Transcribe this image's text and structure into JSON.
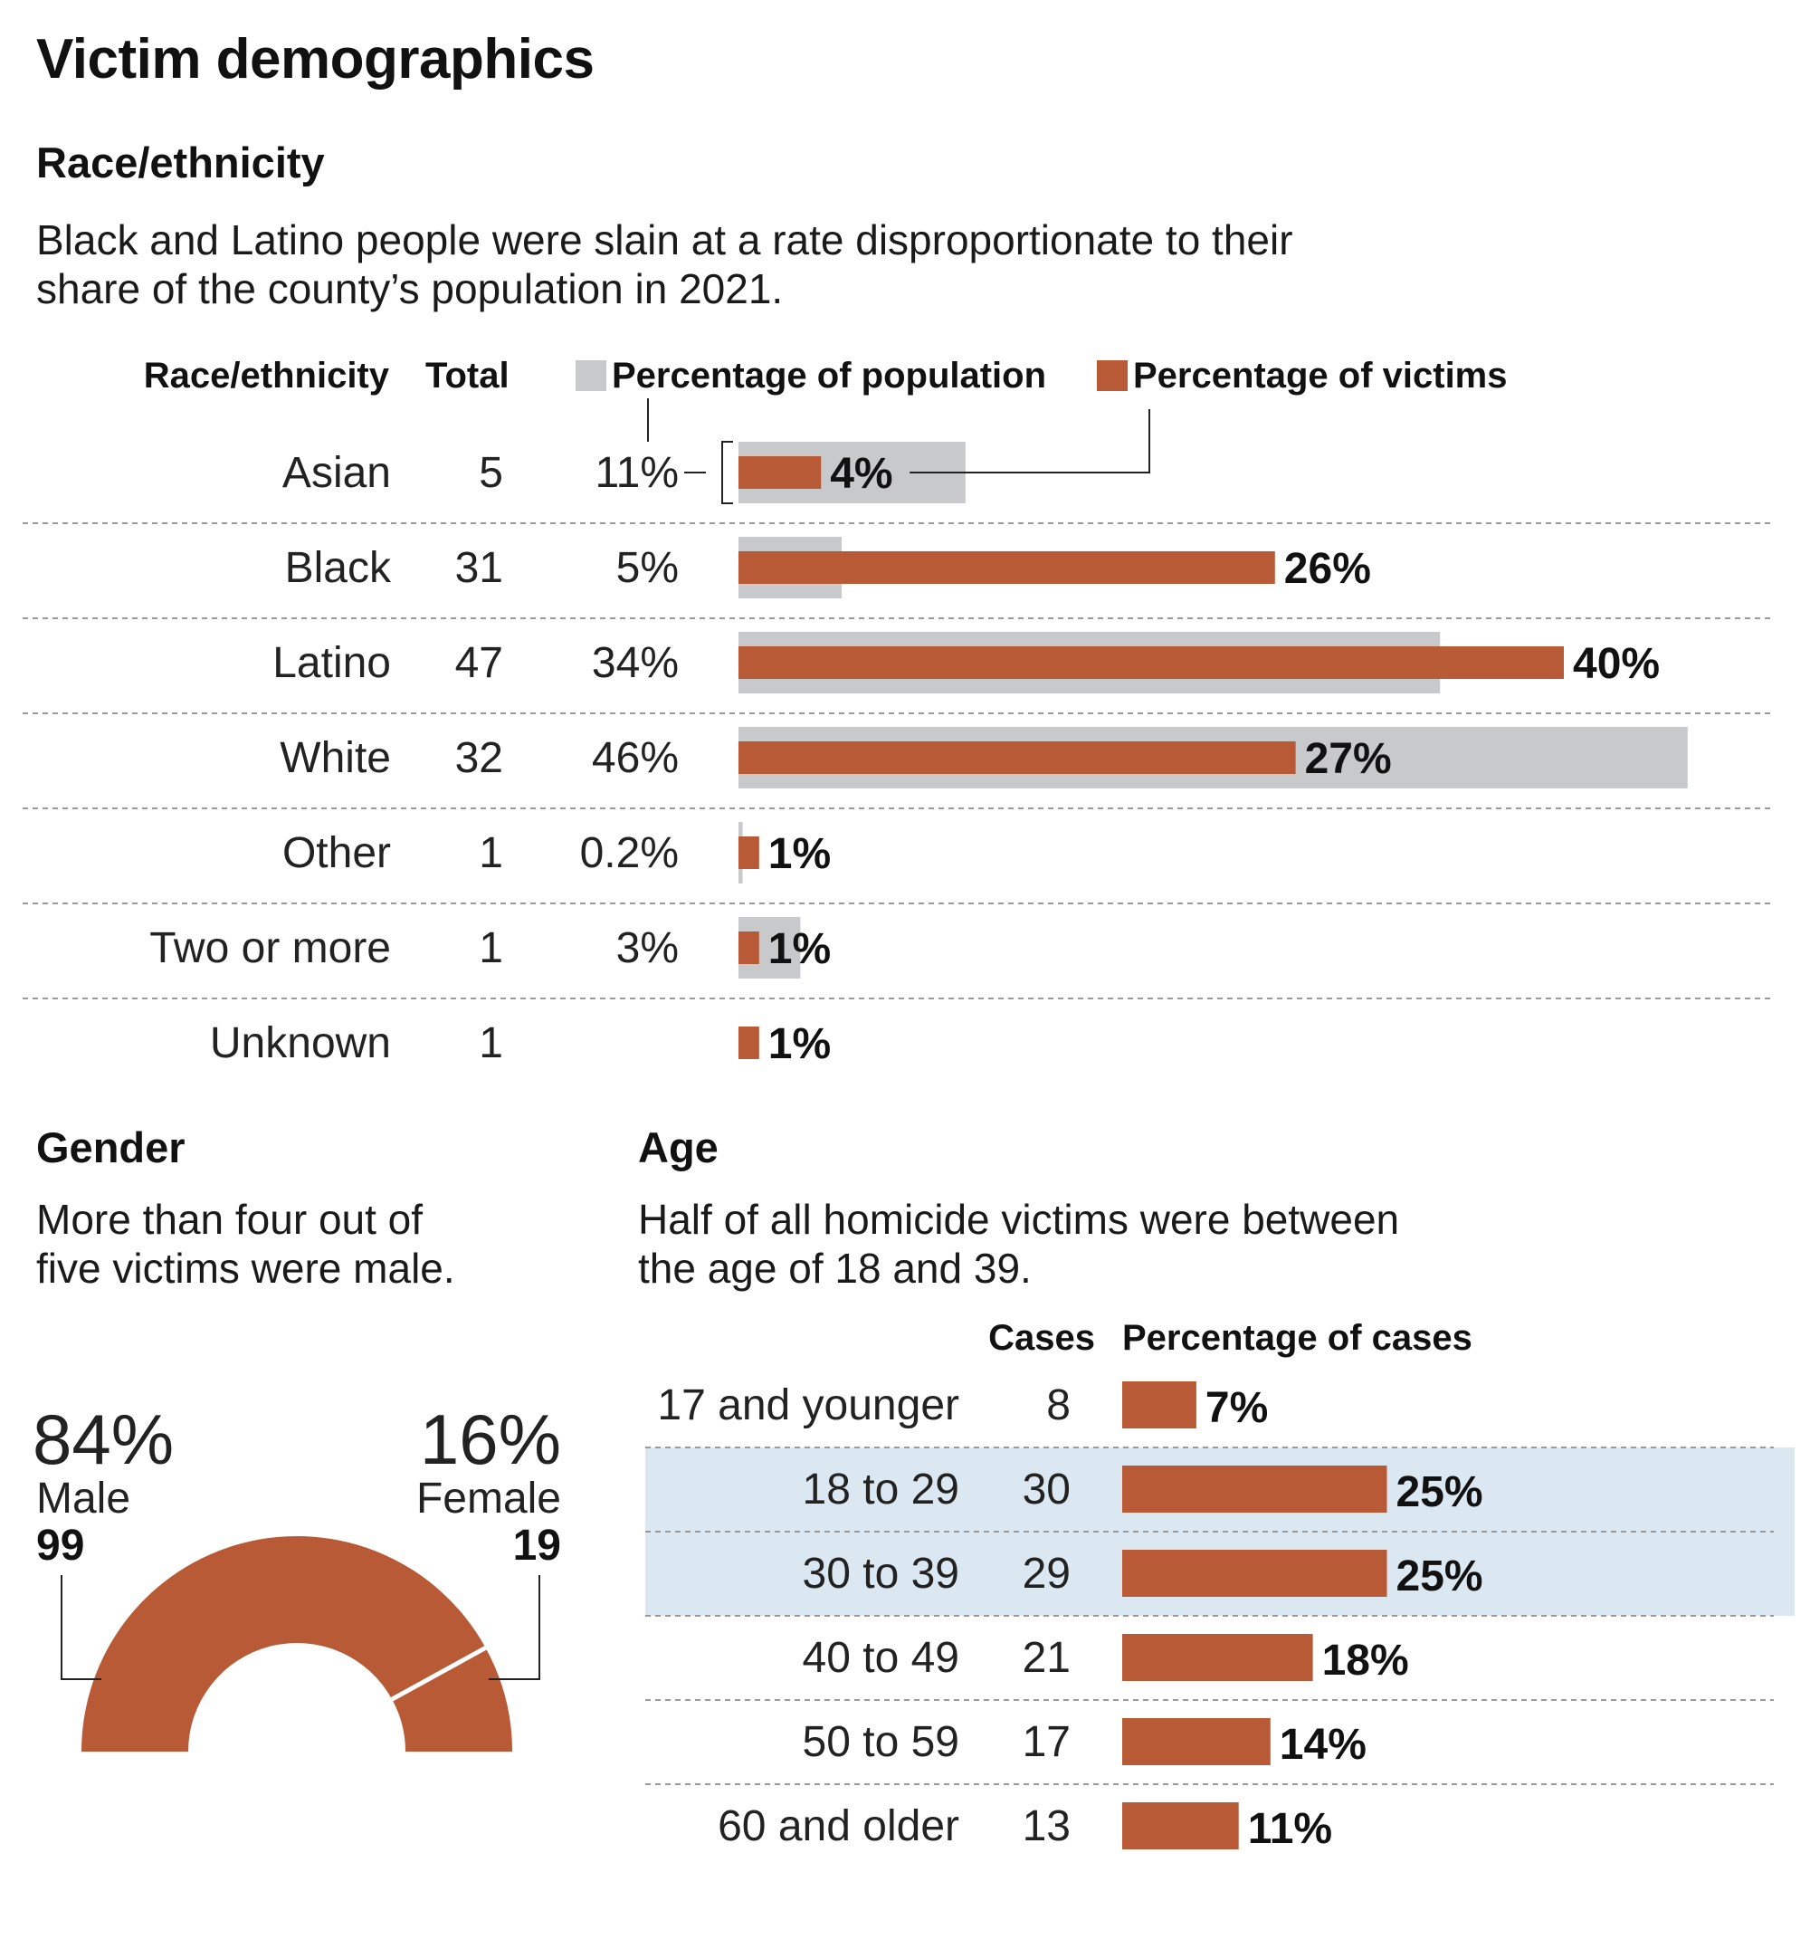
{
  "title": "Victim demographics",
  "race": {
    "heading": "Race/ethnicity",
    "description_line1": "Black and Latino people were slain at a rate disproportionate to their",
    "description_line2": "share of the county’s population in 2021.",
    "col_race": "Race/ethnicity",
    "col_total": "Total",
    "legend_population": "Percentage of population",
    "legend_victims": "Percentage of victims",
    "colors": {
      "population": "#c8c9cb",
      "victims": "#b85a36"
    }
  },
  "gender": {
    "heading": "Gender",
    "description_line1": "More than four out of",
    "description_line2": "five victims were male.",
    "male": {
      "pct": "84%",
      "label": "Male",
      "count": "99",
      "share": 0.84
    },
    "female": {
      "pct": "16%",
      "label": "Female",
      "count": "19",
      "share": 0.16
    }
  },
  "age": {
    "heading": "Age",
    "description_line1": "Half of all homicide victims were between",
    "description_line2": "the age of 18 and 39.",
    "col_cases": "Cases",
    "col_pct": "Percentage of cases",
    "highlight_color": "#dce8f1"
  },
  "chart_data": [
    {
      "type": "bar",
      "title": "Race/ethnicity",
      "categories": [
        "Asian",
        "Black",
        "Latino",
        "White",
        "Other",
        "Two or more",
        "Unknown"
      ],
      "totals": [
        "5",
        "31",
        "47",
        "32",
        "1",
        "1",
        "1"
      ],
      "population_labels": [
        "11%",
        "5%",
        "34%",
        "46%",
        "0.2%",
        "3%",
        ""
      ],
      "victim_labels": [
        "4%",
        "26%",
        "40%",
        "27%",
        "1%",
        "1%",
        "1%"
      ],
      "series": [
        {
          "name": "Percentage of population",
          "values": [
            11,
            5,
            34,
            46,
            0.2,
            3,
            null
          ]
        },
        {
          "name": "Percentage of victims",
          "values": [
            4,
            26,
            40,
            27,
            1,
            1,
            1
          ]
        }
      ],
      "xlim": [
        0,
        50
      ]
    },
    {
      "type": "pie",
      "title": "Gender",
      "categories": [
        "Male",
        "Female"
      ],
      "values": [
        84,
        16
      ],
      "counts": [
        99,
        19
      ]
    },
    {
      "type": "bar",
      "title": "Age",
      "categories": [
        "17 and younger",
        "18 to 29",
        "30 to 39",
        "40 to 49",
        "50 to 59",
        "60 and older"
      ],
      "cases": [
        "8",
        "30",
        "29",
        "21",
        "17",
        "13"
      ],
      "pct_labels": [
        "7%",
        "25%",
        "25%",
        "18%",
        "14%",
        "11%"
      ],
      "values": [
        7,
        25,
        25,
        18,
        14,
        11
      ],
      "highlighted": [
        false,
        true,
        true,
        false,
        false,
        false
      ],
      "xlim": [
        0,
        40
      ]
    }
  ]
}
